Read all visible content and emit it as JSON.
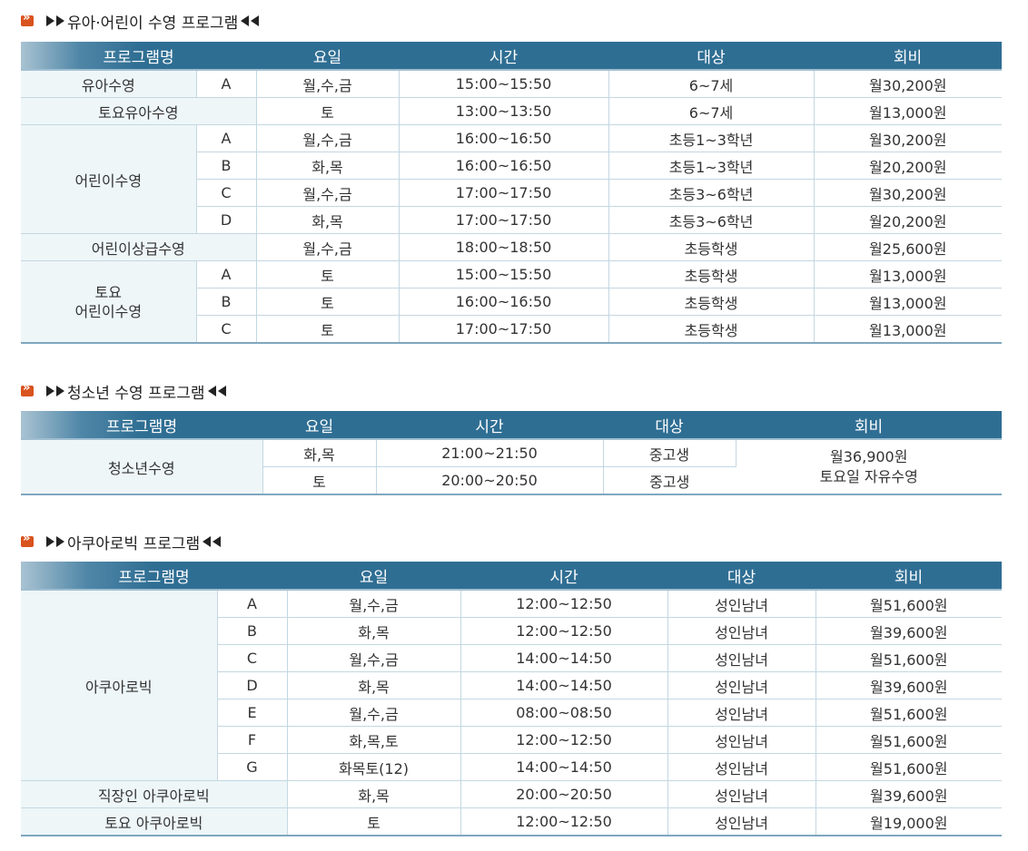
{
  "sections": [
    {
      "title": "유아·어린이 수영 프로그램",
      "headers": [
        "프로그램명",
        "요일",
        "시간",
        "대상",
        "회비"
      ],
      "rows": [
        {
          "name": "유아수영",
          "label": "A",
          "days": "월,수,금",
          "time": "15:00~15:50",
          "target": "6~7세",
          "fee": "월30,200원"
        },
        {
          "name": "토요유아수영",
          "label": "",
          "days": "토",
          "time": "13:00~13:50",
          "target": "6~7세",
          "fee": "월13,000원"
        },
        {
          "name": "어린이수영",
          "label": "A",
          "days": "월,수,금",
          "time": "16:00~16:50",
          "target": "초등1~3학년",
          "fee": "월30,200원"
        },
        {
          "label": "B",
          "days": "화,목",
          "time": "16:00~16:50",
          "target": "초등1~3학년",
          "fee": "월20,200원"
        },
        {
          "label": "C",
          "days": "월,수,금",
          "time": "17:00~17:50",
          "target": "초등3~6학년",
          "fee": "월30,200원"
        },
        {
          "label": "D",
          "days": "화,목",
          "time": "17:00~17:50",
          "target": "초등3~6학년",
          "fee": "월20,200원"
        },
        {
          "name": "어린이상급수영",
          "label": "",
          "days": "월,수,금",
          "time": "18:00~18:50",
          "target": "초등학생",
          "fee": "월25,600원"
        },
        {
          "name_line1": "토요",
          "name_line2": "어린이수영",
          "label": "A",
          "days": "토",
          "time": "15:00~15:50",
          "target": "초등학생",
          "fee": "월13,000원"
        },
        {
          "label": "B",
          "days": "토",
          "time": "16:00~16:50",
          "target": "초등학생",
          "fee": "월13,000원"
        },
        {
          "label": "C",
          "days": "토",
          "time": "17:00~17:50",
          "target": "초등학생",
          "fee": "월13,000원"
        }
      ]
    },
    {
      "title": "청소년 수영 프로그램",
      "headers": [
        "프로그램명",
        "요일",
        "시간",
        "대상",
        "회비"
      ],
      "rows": [
        {
          "name": "청소년수영",
          "days": "화,목",
          "time": "21:00~21:50",
          "target": "중고생",
          "fee_line1": "월36,900원",
          "fee_line2": "토요일 자유수영"
        },
        {
          "days": "토",
          "time": "20:00~20:50",
          "target": "중고생"
        }
      ]
    },
    {
      "title": "아쿠아로빅 프로그램",
      "headers": [
        "프로그램명",
        "요일",
        "시간",
        "대상",
        "회비"
      ],
      "rows": [
        {
          "name": "아쿠아로빅",
          "label": "A",
          "days": "월,수,금",
          "time": "12:00~12:50",
          "target": "성인남녀",
          "fee": "월51,600원"
        },
        {
          "label": "B",
          "days": "화,목",
          "time": "12:00~12:50",
          "target": "성인남녀",
          "fee": "월39,600원"
        },
        {
          "label": "C",
          "days": "월,수,금",
          "time": "14:00~14:50",
          "target": "성인남녀",
          "fee": "월51,600원"
        },
        {
          "label": "D",
          "days": "화,목",
          "time": "14:00~14:50",
          "target": "성인남녀",
          "fee": "월39,600원"
        },
        {
          "label": "E",
          "days": "월,수,금",
          "time": "08:00~08:50",
          "target": "성인남녀",
          "fee": "월51,600원"
        },
        {
          "label": "F",
          "days": "화,목,토",
          "time": "12:00~12:50",
          "target": "성인남녀",
          "fee": "월51,600원"
        },
        {
          "label": "G",
          "days": "화목토(12)",
          "time": "14:00~14:50",
          "target": "성인남녀",
          "fee": "월51,600원"
        },
        {
          "name": "직장인 아쿠아로빅",
          "label": "",
          "days": "화,목",
          "time": "20:00~20:50",
          "target": "성인남녀",
          "fee": "월39,600원"
        },
        {
          "name": "토요 아쿠아로빅",
          "label": "",
          "days": "토",
          "time": "12:00~12:50",
          "target": "성인남녀",
          "fee": "월19,000원"
        }
      ]
    }
  ]
}
